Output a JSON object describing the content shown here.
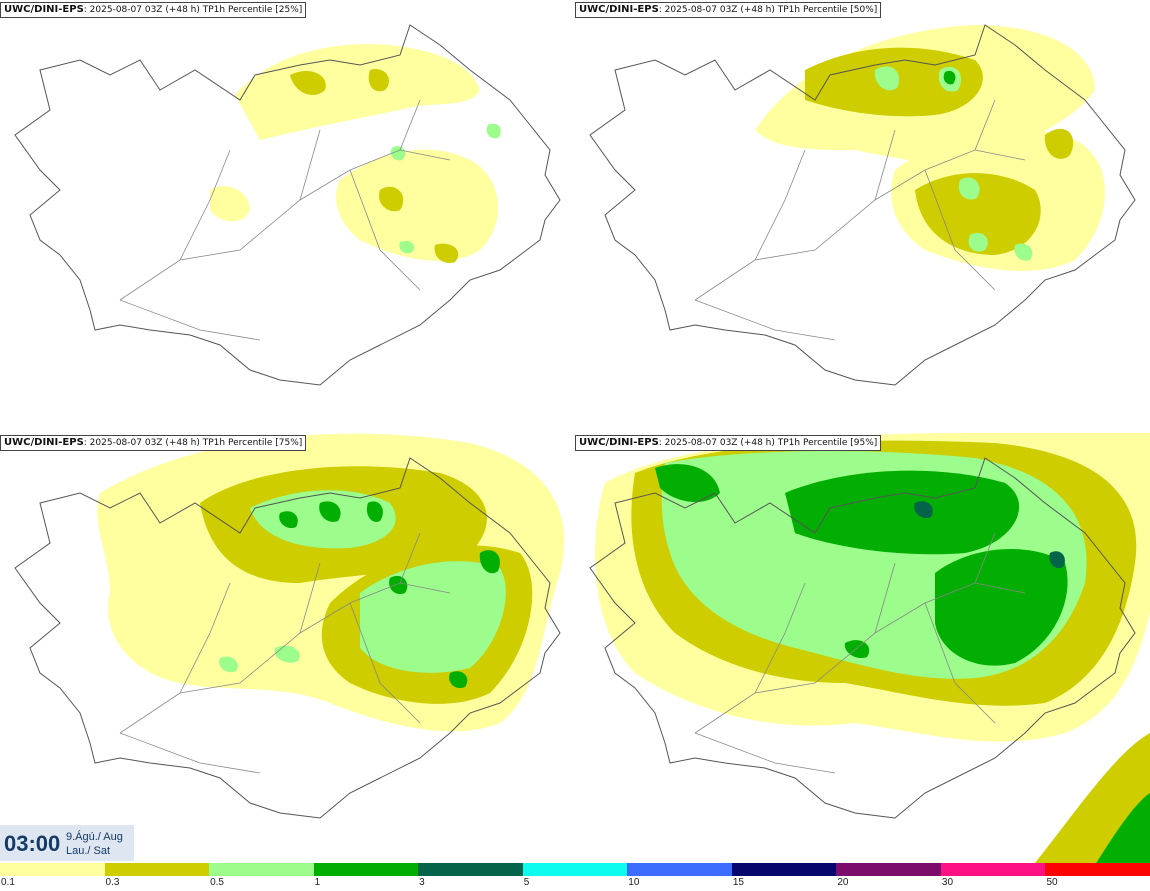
{
  "panels": [
    {
      "source": "UWC/DINI-EPS",
      "detail": "2025-08-07 03Z (+48 h) TP1h Percentile [25%]"
    },
    {
      "source": "UWC/DINI-EPS",
      "detail": "2025-08-07 03Z (+48 h) TP1h Percentile [50%]"
    },
    {
      "source": "UWC/DINI-EPS",
      "detail": "2025-08-07 03Z (+48 h) TP1h Percentile [75%]"
    },
    {
      "source": "UWC/DINI-EPS",
      "detail": "2025-08-07 03Z (+48 h) TP1h Percentile [95%]"
    }
  ],
  "valid_time": {
    "clock": "03:00",
    "date_line1": "9.Ágú./ Aug",
    "date_line2": "Lau./ Sat"
  },
  "legend": {
    "colors": [
      "#ffff9f",
      "#cdcd00",
      "#9cfc8c",
      "#02ae02",
      "#03644a",
      "#0efcf0",
      "#3c6cfc",
      "#06066c",
      "#7c0c6c",
      "#fc1084",
      "#fc0404"
    ],
    "ticks": [
      "0.1",
      "0.3",
      "0.5",
      "1",
      "3",
      "5",
      "10",
      "15",
      "20",
      "30",
      "50"
    ]
  }
}
